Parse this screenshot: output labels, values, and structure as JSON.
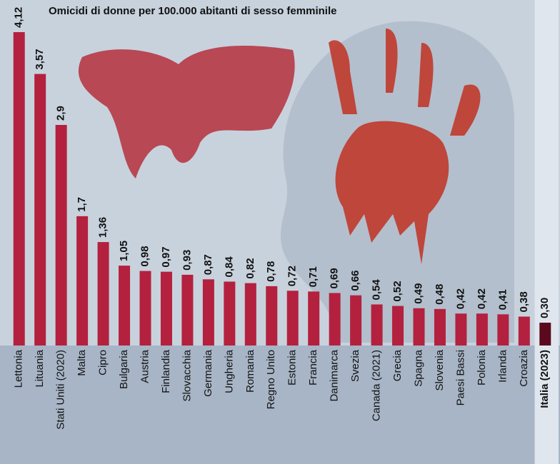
{
  "chart_data": {
    "type": "bar",
    "title": "Omicidi di donne per 100.000 abitanti di sesso femminile",
    "categories": [
      "Lettonia",
      "Lituania",
      "Stati Uniti (2020)",
      "Malta",
      "Cipro",
      "Bulgaria",
      "Austria",
      "Finlandia",
      "Slovacchia",
      "Germania",
      "Ungheria",
      "Romania",
      "Regno Unito",
      "Estonia",
      "Francia",
      "Danimarca",
      "Svezia",
      "Canada (2021)",
      "Grecia",
      "Spagna",
      "Slovenia",
      "Paesi Bassi",
      "Polonia",
      "Irlanda",
      "Croazia",
      "Italia (2023)"
    ],
    "values": [
      4.12,
      3.57,
      2.9,
      1.7,
      1.36,
      1.05,
      0.98,
      0.97,
      0.93,
      0.87,
      0.84,
      0.82,
      0.78,
      0.72,
      0.71,
      0.69,
      0.66,
      0.54,
      0.52,
      0.49,
      0.48,
      0.42,
      0.42,
      0.41,
      0.38,
      0.3
    ],
    "value_labels": [
      "4,12",
      "3,57",
      "2,9",
      "1,7",
      "1,36",
      "1,05",
      "0,98",
      "0,97",
      "0,93",
      "0,87",
      "0,84",
      "0,82",
      "0,78",
      "0,72",
      "0,71",
      "0,69",
      "0,66",
      "0,54",
      "0,52",
      "0,49",
      "0,48",
      "0,42",
      "0,42",
      "0,41",
      "0,38",
      "0,30"
    ],
    "color": "#b3213e",
    "highlight_color": "#5a0a1c",
    "highlight": "Italia (2023)"
  }
}
